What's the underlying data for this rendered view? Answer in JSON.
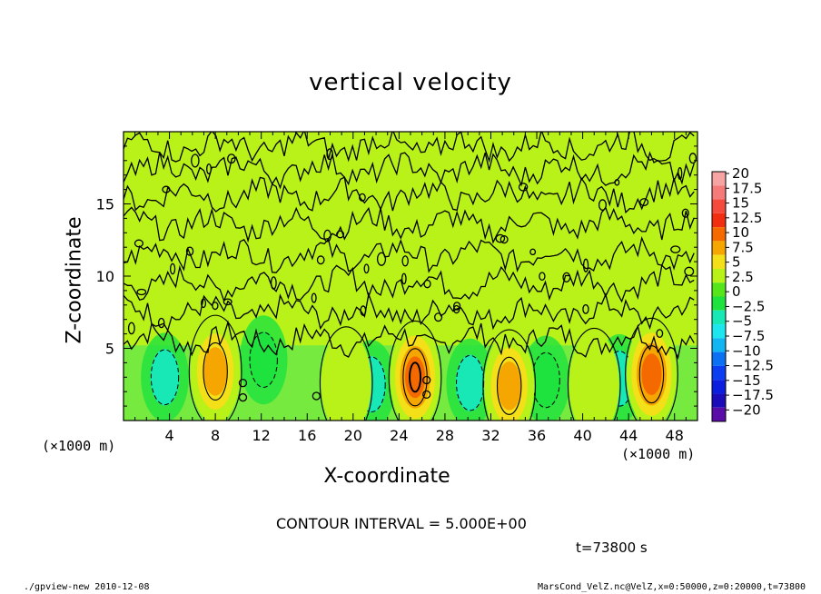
{
  "page": {
    "title": "vertical velocity",
    "xlabel": "X-coordinate",
    "ylabel": "Z-coordinate",
    "x_unit_left": "(×1000 m)",
    "x_unit_right": "(×1000 m)",
    "contour_note": "CONTOUR INTERVAL = 5.000E+00",
    "time_note": "t=73800 s",
    "footer_left": "./gpview-new   2010-12-08",
    "footer_right": "MarsCond_VelZ.nc@VelZ,x=0:50000,z=0:20000,t=73800"
  },
  "chart_data": {
    "type": "heatmap",
    "title": "vertical velocity",
    "xlabel": "X-coordinate",
    "ylabel": "Z-coordinate",
    "x_unit": "×1000 m",
    "xlim": [
      0,
      50
    ],
    "ylim": [
      0,
      20
    ],
    "x_ticks": [
      "4",
      "8",
      "12",
      "16",
      "20",
      "24",
      "28",
      "32",
      "36",
      "40",
      "44",
      "48"
    ],
    "y_ticks": [
      "5",
      "10",
      "15"
    ],
    "contour_interval": 5.0,
    "time_s": 73800,
    "colorbar": {
      "labels": [
        "20",
        "17.5",
        "15",
        "12.5",
        "10",
        "7.5",
        "5",
        "2.5",
        "0",
        "−2.5",
        "−5",
        "−7.5",
        "−10",
        "−12.5",
        "−15",
        "−17.5",
        "−20"
      ],
      "colors": [
        "#f6a3a3",
        "#f57a7a",
        "#f44b3c",
        "#f22e12",
        "#f46a00",
        "#f5a600",
        "#f3e018",
        "#b8f218",
        "#55e51a",
        "#1ee23e",
        "#17e8b6",
        "#1ee6ee",
        "#11b5f2",
        "#0c70f2",
        "#0c3df0",
        "#0b1ee0",
        "#1a0cb8",
        "#5a0ca8"
      ]
    },
    "background_value": 0.5,
    "updrafts": [
      {
        "x": 8.0,
        "z": 3.4,
        "peak": 9
      },
      {
        "x": 25.4,
        "z": 3.0,
        "peak": 12
      },
      {
        "x": 33.6,
        "z": 2.4,
        "peak": 8
      },
      {
        "x": 46.0,
        "z": 3.2,
        "peak": 10
      },
      {
        "x": 19.4,
        "z": 2.6,
        "peak": 4
      },
      {
        "x": 41.0,
        "z": 2.5,
        "peak": 4
      }
    ],
    "downdrafts": [
      {
        "x": 3.6,
        "z": 3.0,
        "peak": -6
      },
      {
        "x": 12.2,
        "z": 4.2,
        "peak": -4
      },
      {
        "x": 21.6,
        "z": 2.5,
        "peak": -6
      },
      {
        "x": 30.2,
        "z": 2.6,
        "peak": -7
      },
      {
        "x": 36.8,
        "z": 2.8,
        "peak": -5
      },
      {
        "x": 43.2,
        "z": 2.9,
        "peak": -6
      }
    ]
  }
}
